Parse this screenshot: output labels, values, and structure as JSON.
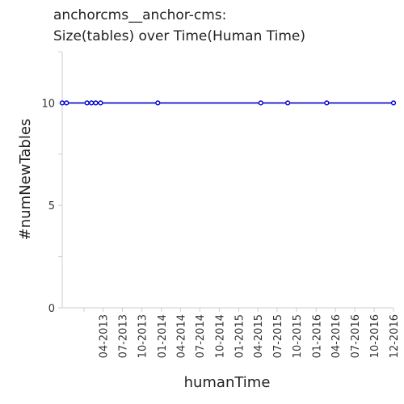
{
  "chart_data": {
    "type": "line",
    "title_lines": [
      "anchorcms__anchor-cms:",
      "Size(tables) over Time(Human Time)"
    ],
    "xlabel": "humanTime",
    "ylabel": "#numNewTables",
    "x_tick_labels": [
      "04-2013",
      "07-2013",
      "10-2013",
      "01-2014",
      "04-2014",
      "07-2014",
      "10-2014",
      "01-2015",
      "04-2015",
      "07-2015",
      "10-2015",
      "01-2016",
      "04-2016",
      "07-2016",
      "10-2016",
      "12-2016"
    ],
    "y_ticks": [
      0,
      5,
      10
    ],
    "ylim": [
      0,
      12.5
    ],
    "grid": false,
    "series_color": "#0000cc",
    "series": [
      {
        "x": [
          "2012-09-20",
          "2012-10-10",
          "2013-01-15",
          "2013-02-05",
          "2013-02-25",
          "2013-03-20",
          "2013-12-15",
          "2015-04-15",
          "2015-08-20",
          "2016-02-20",
          "2016-12-31"
        ],
        "values": [
          10,
          10,
          10,
          10,
          10,
          10,
          10,
          10,
          10,
          10,
          10
        ]
      }
    ]
  }
}
